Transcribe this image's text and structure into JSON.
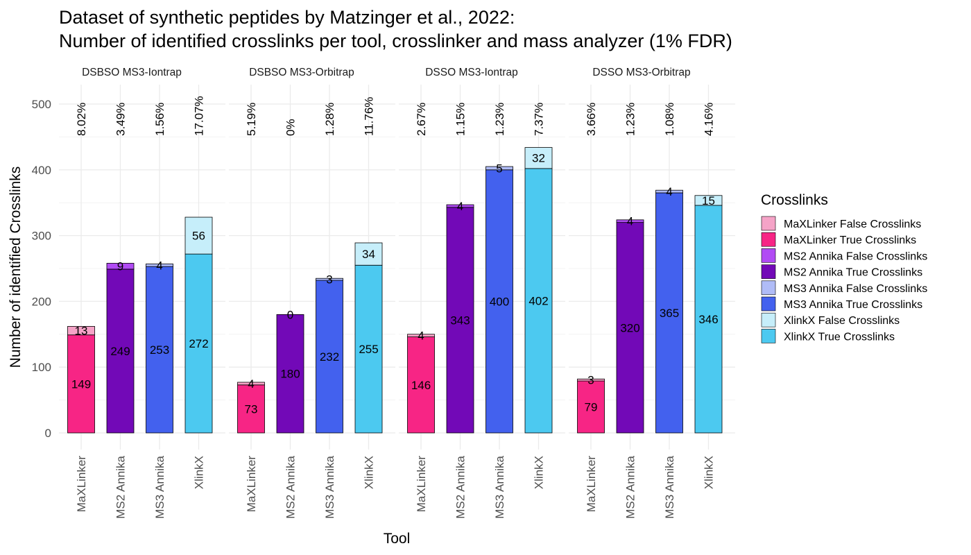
{
  "chart_data": {
    "type": "bar",
    "stacked": true,
    "title_lines": [
      "Dataset of synthetic peptides by Matzinger et al., 2022:",
      "Number of identified crosslinks per tool, crosslinker and mass analyzer (1% FDR)"
    ],
    "xlabel": "Tool",
    "ylabel": "Number of identified Crosslinks",
    "ylim": [
      0,
      530
    ],
    "yticks": [
      0,
      100,
      200,
      300,
      400,
      500
    ],
    "grid": true,
    "legend_position": "right",
    "legend_title": "Crosslinks",
    "legend": [
      {
        "label": "MaXLinker False Crosslinks",
        "color": "#F5A3C7"
      },
      {
        "label": "MaXLinker True Crosslinks",
        "color": "#F72585"
      },
      {
        "label": "MS2 Annika False Crosslinks",
        "color": "#B14BF4"
      },
      {
        "label": "MS2 Annika True Crosslinks",
        "color": "#7209B7"
      },
      {
        "label": "MS3 Annika False Crosslinks",
        "color": "#B0BCF7"
      },
      {
        "label": "MS3 Annika True Crosslinks",
        "color": "#4361EE"
      },
      {
        "label": "XlinkX False Crosslinks",
        "color": "#C6EEFA"
      },
      {
        "label": "XlinkX True Crosslinks",
        "color": "#4CC9F0"
      }
    ],
    "categories": [
      "MaXLinker",
      "MS2 Annika",
      "MS3 Annika",
      "XlinkX"
    ],
    "colors": {
      "MaXLinker": {
        "true": "#F72585",
        "false": "#F5A3C7"
      },
      "MS2 Annika": {
        "true": "#7209B7",
        "false": "#B14BF4"
      },
      "MS3 Annika": {
        "true": "#4361EE",
        "false": "#B0BCF7"
      },
      "XlinkX": {
        "true": "#4CC9F0",
        "false": "#C6EEFA"
      }
    },
    "panels": [
      {
        "name": "DSBSO MS3-Iontrap",
        "true_values": [
          149,
          249,
          253,
          272
        ],
        "false_values": [
          13,
          9,
          4,
          56
        ],
        "fdr": [
          "8.02%",
          "3.49%",
          "1.56%",
          "17.07%"
        ]
      },
      {
        "name": "DSBSO MS3-Orbitrap",
        "true_values": [
          73,
          180,
          232,
          255
        ],
        "false_values": [
          4,
          0,
          3,
          34
        ],
        "fdr": [
          "5.19%",
          "0%",
          "1.28%",
          "11.76%"
        ]
      },
      {
        "name": "DSSO MS3-Iontrap",
        "true_values": [
          146,
          343,
          400,
          402
        ],
        "false_values": [
          4,
          4,
          5,
          32
        ],
        "fdr": [
          "2.67%",
          "1.15%",
          "1.23%",
          "7.37%"
        ]
      },
      {
        "name": "DSSO MS3-Orbitrap",
        "true_values": [
          79,
          320,
          365,
          346
        ],
        "false_values": [
          3,
          4,
          4,
          15
        ],
        "fdr": [
          "3.66%",
          "1.23%",
          "1.08%",
          "4.16%"
        ]
      }
    ]
  }
}
